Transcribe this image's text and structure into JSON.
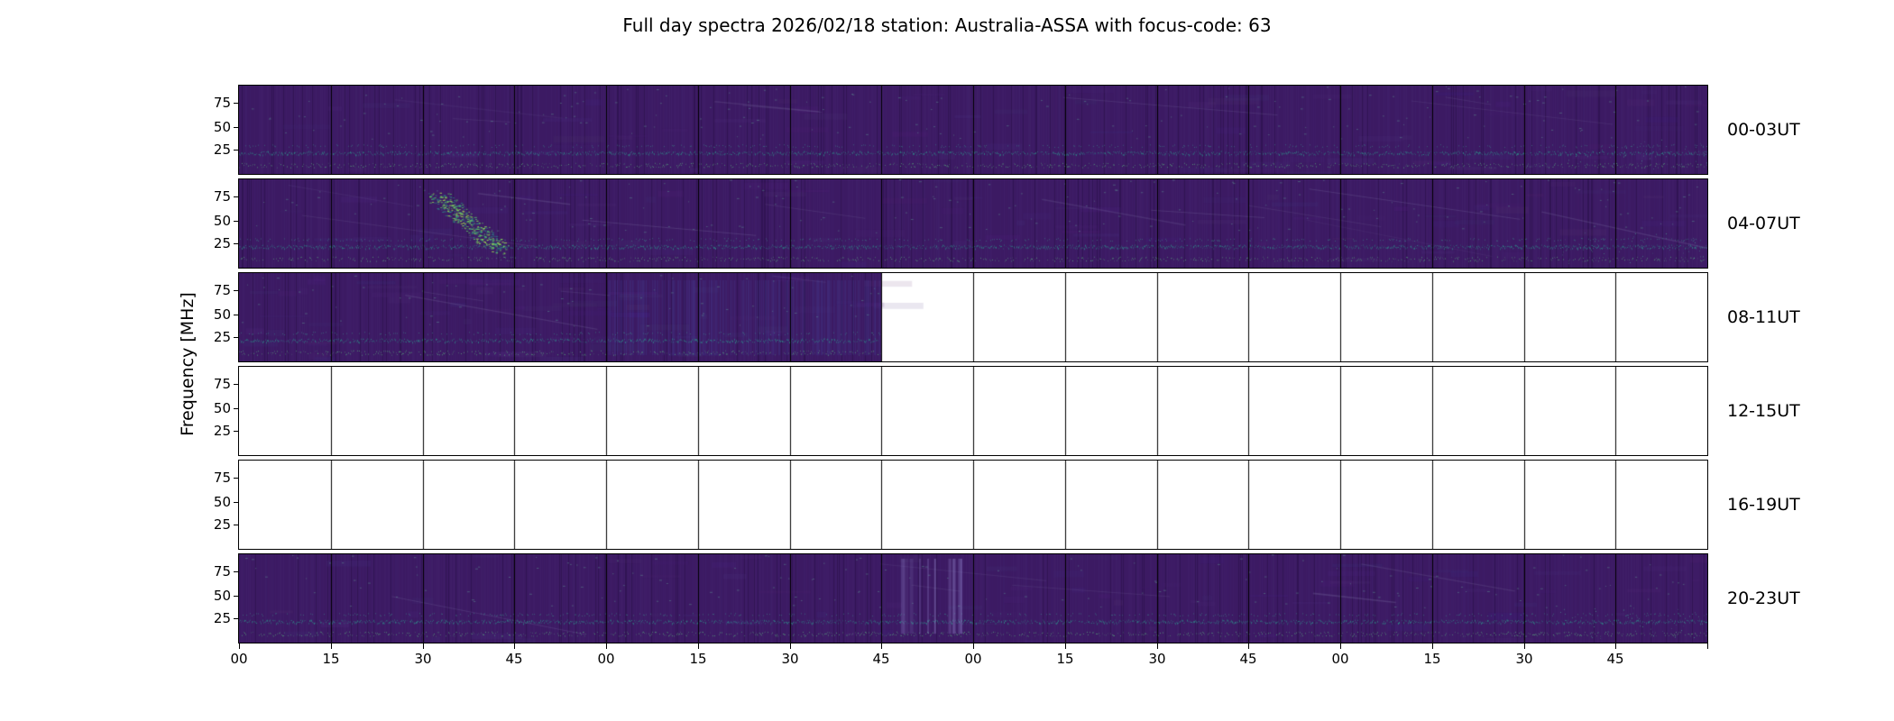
{
  "chart_data": {
    "type": "heatmap",
    "title": "Full day spectra 2026/02/18 station: Australia-ASSA with focus-code: 63",
    "ylabel": "Frequency [MHz]",
    "station": "Australia-ASSA",
    "date": "2026/02/18",
    "focus_code": "63",
    "colormap": "viridis",
    "y_tick_labels": [
      "75",
      "50",
      "25"
    ],
    "x_tick_labels": [
      "00",
      "15",
      "30",
      "45",
      "00",
      "15",
      "30",
      "45",
      "00",
      "15",
      "30",
      "45",
      "00",
      "15",
      "30",
      "45"
    ],
    "segments_per_row": 16,
    "minutes_per_segment": 15,
    "hours_per_row": 4,
    "legend_position": "none",
    "grid": "segment boundaries every 15 minutes",
    "colors": {
      "base": "#3c1a63",
      "teal_band": "#2c968c",
      "bright_green": "#5ec962",
      "empty": "#ffffff",
      "axis": "#000000"
    },
    "rows": [
      {
        "label": "00-03UT",
        "filled_segments": 16,
        "diagonal_streaks": 7,
        "note": "full data; faint diagonal interference streaks; teal RFI band near 25 MHz"
      },
      {
        "label": "04-07UT",
        "filled_segments": 16,
        "diagonal_streaks": 11,
        "burst_x_frac": 0.135,
        "note": "full data; bright green solar radio burst cluster around 04:30-04:50 UT; strong teal RFI band near 25 MHz"
      },
      {
        "label": "08-11UT",
        "filled_segments": 7,
        "diagonal_streaks": 4,
        "column_boost": {
          "from": 0.25,
          "to": 0.4375
        },
        "note": "data only until about 09:45 UT; remainder of row empty"
      },
      {
        "label": "12-15UT",
        "filled_segments": 0,
        "note": "no data"
      },
      {
        "label": "16-19UT",
        "filled_segments": 0,
        "note": "no data"
      },
      {
        "label": "20-23UT",
        "filled_segments": 16,
        "diagonal_streaks": 6,
        "streak_x_frac": 0.45,
        "note": "full data; vertical bright interference streaks around 21:45-22:15 UT; teal RFI band near 25 MHz"
      }
    ]
  }
}
